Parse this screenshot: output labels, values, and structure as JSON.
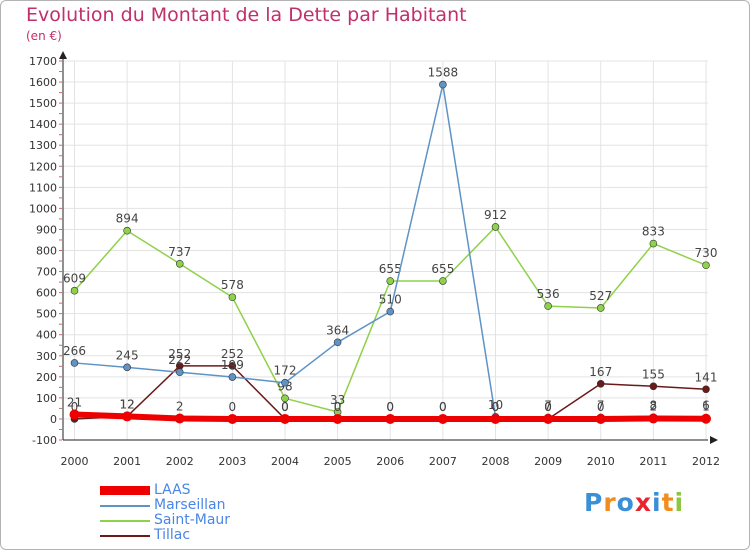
{
  "title": "Evolution du Montant de la Dette par Habitant",
  "subtitle": "(en €)",
  "logo": "Proxiti",
  "chart_data": {
    "type": "line",
    "x": [
      "2000",
      "2001",
      "2002",
      "2003",
      "2004",
      "2005",
      "2006",
      "2007",
      "2008",
      "2009",
      "2010",
      "2011",
      "2012"
    ],
    "ylim": [
      -100,
      1700
    ],
    "yticks": [
      -100,
      0,
      100,
      200,
      300,
      400,
      500,
      600,
      700,
      800,
      900,
      1000,
      1100,
      1200,
      1300,
      1400,
      1500,
      1600,
      1700
    ],
    "grid": true,
    "legend_position": "bottom-left",
    "series": [
      {
        "name": "Tillac",
        "color": "#6b1a1a",
        "values": [
          0,
          12,
          252,
          252,
          0,
          0,
          0,
          0,
          0,
          0,
          167,
          155,
          141
        ],
        "labels": [
          "0",
          "12",
          "252",
          "252",
          "0",
          "0",
          "0",
          "0",
          "0",
          "0",
          "167",
          "155",
          "141"
        ]
      },
      {
        "name": "Saint-Maur",
        "color": "#8ed14a",
        "values": [
          609,
          894,
          737,
          578,
          98,
          33,
          655,
          655,
          912,
          536,
          527,
          833,
          730
        ],
        "labels": [
          "609",
          "894",
          "737",
          "578",
          "98",
          "33",
          "655",
          "655",
          "912",
          "536",
          "527",
          "833",
          "730"
        ]
      },
      {
        "name": "Marseillan",
        "color": "#5e93c6",
        "values": [
          266,
          245,
          222,
          199,
          172,
          364,
          510,
          1588,
          10,
          7,
          7,
          8,
          6
        ],
        "labels": [
          "266",
          "245",
          "222",
          "199",
          "172",
          "364",
          "510",
          "1588",
          "10",
          "7",
          "7",
          "8",
          "6"
        ]
      },
      {
        "name": "LAAS",
        "color": "#ee0000",
        "values": [
          21,
          12,
          2,
          0,
          0,
          0,
          0,
          0,
          0,
          0,
          0,
          2,
          1
        ],
        "labels": [
          "21",
          "12",
          "2",
          "0",
          "0",
          "0",
          "0",
          "0",
          "0",
          "0",
          "0",
          "2",
          "1"
        ]
      }
    ],
    "legend_order": [
      "LAAS",
      "Marseillan",
      "Saint-Maur",
      "Tillac"
    ]
  }
}
